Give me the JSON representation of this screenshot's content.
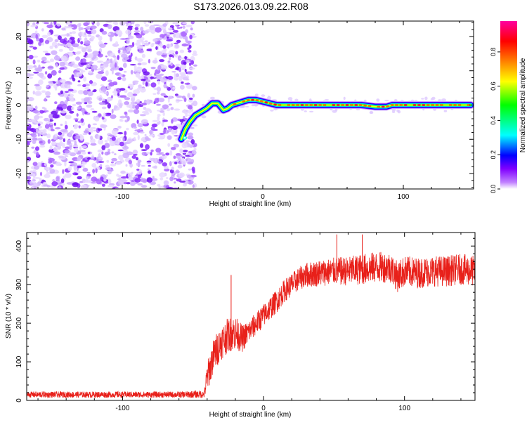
{
  "title": "S173.2026.013.09.22.R08",
  "chart_data": [
    {
      "type": "heatmap",
      "xlabel": "Height of straight line (km)",
      "ylabel": "Frequency (Hz)",
      "xlim": [
        -168,
        150
      ],
      "ylim": [
        -24.5,
        24.5
      ],
      "xticks": [
        -100,
        0,
        100
      ],
      "yticks": [
        -20,
        -10,
        0,
        10,
        20
      ],
      "noise_region_x": [
        -168,
        -48
      ],
      "ridge": {
        "x": [
          -58,
          -55,
          -52,
          -48,
          -44,
          -40,
          -36,
          -32,
          -28,
          -25,
          -22,
          -18,
          -14,
          -10,
          -5,
          0,
          5,
          10,
          20,
          30,
          40,
          50,
          60,
          70,
          80,
          88,
          92,
          100,
          110,
          120,
          130,
          140,
          148
        ],
        "freq": [
          -10,
          -7,
          -5,
          -3,
          -2,
          -1,
          0.5,
          0.5,
          -1.5,
          -1,
          0,
          0.5,
          1,
          1.5,
          1.5,
          1,
          0.5,
          0,
          0,
          0,
          0,
          0,
          0,
          0,
          -0.5,
          -0.5,
          0,
          0,
          0,
          0,
          0,
          0,
          0
        ]
      },
      "colorbar": {
        "label": "Normalized spectral amplitude",
        "range": [
          0,
          0.98
        ],
        "ticks": [
          0.0,
          0.2,
          0.4,
          0.6,
          0.8
        ],
        "tick_labels": [
          "0.0",
          "0.2",
          "0.4",
          "0.6",
          "0.8"
        ],
        "colors": [
          "#ffffff",
          "#8000ff",
          "#0000ff",
          "#00ffff",
          "#00ff00",
          "#ffff00",
          "#ff8000",
          "#ff0000",
          "#ff00a0"
        ]
      }
    },
    {
      "type": "line",
      "xlabel": "Height of straight line (km)",
      "ylabel": "SNR (10 * v/v)",
      "xlim": [
        -168,
        150
      ],
      "ylim": [
        0,
        435
      ],
      "xticks": [
        -100,
        0,
        100
      ],
      "yticks": [
        0,
        100,
        200,
        300,
        400
      ],
      "color": "#e8201a",
      "series": [
        {
          "name": "SNR",
          "x": [
            -168,
            -150,
            -120,
            -90,
            -60,
            -42,
            -40,
            -35,
            -30,
            -25,
            -20,
            -15,
            -10,
            -5,
            0,
            5,
            10,
            15,
            20,
            25,
            30,
            40,
            50,
            60,
            70,
            80,
            90,
            95,
            100,
            110,
            120,
            130,
            140,
            150
          ],
          "y": [
            15,
            15,
            15,
            15,
            15,
            16,
            60,
            120,
            150,
            170,
            175,
            160,
            180,
            200,
            220,
            240,
            260,
            285,
            300,
            315,
            325,
            330,
            335,
            335,
            340,
            345,
            345,
            320,
            335,
            330,
            335,
            335,
            340,
            335
          ],
          "noise": [
            8,
            8,
            8,
            8,
            8,
            10,
            40,
            45,
            45,
            45,
            45,
            35,
            30,
            30,
            30,
            30,
            30,
            30,
            30,
            30,
            32,
            35,
            35,
            38,
            40,
            40,
            40,
            40,
            40,
            40,
            40,
            40,
            40,
            40
          ]
        }
      ],
      "spikes": [
        {
          "x": -23,
          "y": 325
        },
        {
          "x": 52,
          "y": 430
        },
        {
          "x": 70,
          "y": 430
        }
      ]
    }
  ]
}
